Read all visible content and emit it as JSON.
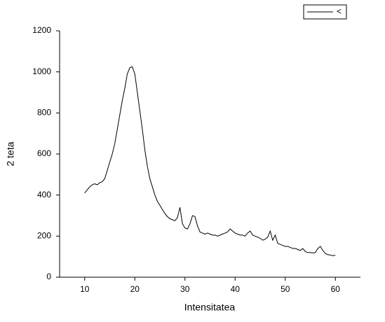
{
  "chart_data": {
    "type": "line",
    "x_label": "Intensitatea",
    "y_label": "2 teta",
    "x": [
      10,
      10.5,
      11,
      11.5,
      12,
      12.5,
      13,
      13.5,
      14,
      14.5,
      15,
      15.5,
      16,
      16.5,
      17,
      17.5,
      18,
      18.5,
      19,
      19.5,
      20,
      20.5,
      21,
      21.5,
      22,
      22.5,
      23,
      23.5,
      24,
      24.5,
      25,
      25.5,
      26,
      26.5,
      27,
      27.5,
      28,
      28.5,
      29,
      29.5,
      30,
      30.5,
      31,
      31.5,
      32,
      32.5,
      33,
      33.5,
      34,
      34.5,
      35,
      35.5,
      36,
      36.5,
      37,
      37.5,
      38,
      38.5,
      39,
      39.5,
      40,
      40.5,
      41,
      41.5,
      42,
      42.5,
      43,
      43.5,
      44,
      44.5,
      45,
      45.5,
      46,
      46.5,
      47,
      47.5,
      48,
      48.5,
      49,
      49.5,
      50,
      50.5,
      51,
      51.5,
      52,
      52.5,
      53,
      53.5,
      54,
      54.5,
      55,
      55.5,
      56,
      56.5,
      57,
      57.5,
      58,
      58.5,
      59,
      59.5,
      60
    ],
    "series": [
      {
        "name": "<",
        "color": "#000000",
        "values": [
          410,
          425,
          440,
          450,
          455,
          450,
          460,
          465,
          480,
          520,
          560,
          600,
          650,
          720,
          790,
          860,
          920,
          990,
          1020,
          1025,
          990,
          900,
          810,
          720,
          620,
          540,
          480,
          440,
          400,
          370,
          350,
          330,
          310,
          295,
          285,
          280,
          275,
          290,
          340,
          260,
          240,
          235,
          260,
          300,
          295,
          250,
          220,
          215,
          210,
          215,
          210,
          205,
          205,
          200,
          205,
          210,
          215,
          220,
          235,
          225,
          215,
          210,
          205,
          205,
          200,
          215,
          225,
          205,
          200,
          195,
          190,
          180,
          185,
          195,
          225,
          180,
          205,
          165,
          160,
          155,
          150,
          150,
          145,
          140,
          140,
          135,
          130,
          140,
          125,
          120,
          120,
          118,
          120,
          140,
          150,
          130,
          115,
          110,
          108,
          105,
          107
        ]
      }
    ],
    "xlim": [
      5,
      65
    ],
    "xticks": [
      10,
      20,
      30,
      40,
      50,
      60
    ],
    "ylim": [
      0,
      1200
    ],
    "yticks": [
      0,
      200,
      400,
      600,
      800,
      1000,
      1200
    ],
    "legend": "top-right"
  }
}
